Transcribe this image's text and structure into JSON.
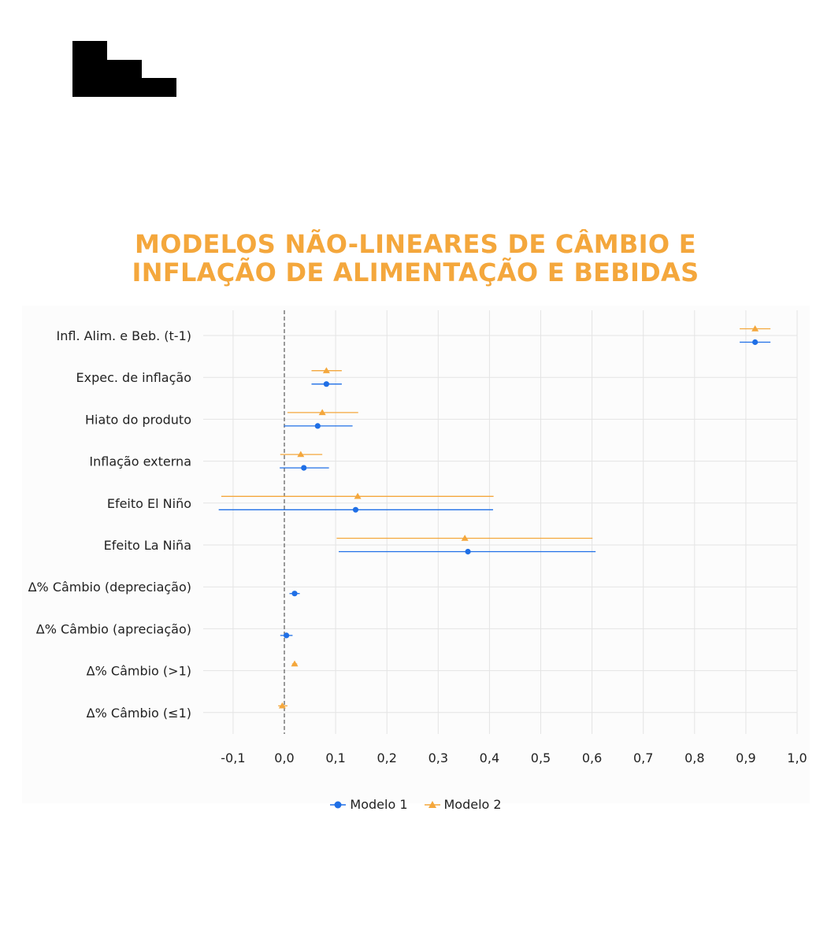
{
  "title_lines": [
    "MODELOS NÃO-LINEARES DE CÂMBIO E",
    "INFLAÇÃO DE ALIMENTAÇÃO E BEBIDAS"
  ],
  "colors": {
    "modelo1": "#1f6fe6",
    "modelo2": "#f4a73c",
    "title": "#f4a73c",
    "grid": "#e4e4e4",
    "zero_line": "#666666"
  },
  "legend": [
    {
      "label": "Modelo 1",
      "marker": "circle"
    },
    {
      "label": "Modelo 2",
      "marker": "triangle"
    }
  ],
  "chart_data": {
    "type": "scatter",
    "subtype": "coefficient-plot-with-confidence-intervals",
    "orientation": "horizontal",
    "categories": [
      "Infl. Alim. e Beb. (t-1)",
      "Expec. de inflação",
      "Hiato do produto",
      "Inflação externa",
      "Efeito El Niño",
      "Efeito La Niña",
      "Δ% Câmbio (depreciação)",
      "Δ% Câmbio (apreciação)",
      "Δ% Câmbio (>1)",
      "Δ% Câmbio (≤1)"
    ],
    "xlim": [
      -0.15,
      1.0
    ],
    "xticks": [
      -0.1,
      0.0,
      0.1,
      0.2,
      0.3,
      0.4,
      0.5,
      0.6,
      0.7,
      0.8,
      0.9,
      1.0
    ],
    "xtick_labels": [
      "-0,1",
      "0,0",
      "0,1",
      "0,2",
      "0,3",
      "0,4",
      "0,5",
      "0,6",
      "0,7",
      "0,8",
      "0,9",
      "1,0"
    ],
    "reference_line": 0.0,
    "grid": true,
    "legend_position": "bottom-center",
    "series": [
      {
        "name": "Modelo 1",
        "marker": "circle",
        "points": [
          {
            "category": "Infl. Alim. e Beb. (t-1)",
            "estimate": 0.918,
            "lower": 0.888,
            "upper": 0.948
          },
          {
            "category": "Expec. de inflação",
            "estimate": 0.082,
            "lower": 0.053,
            "upper": 0.112
          },
          {
            "category": "Hiato do produto",
            "estimate": 0.065,
            "lower": -0.001,
            "upper": 0.133
          },
          {
            "category": "Inflação externa",
            "estimate": 0.038,
            "lower": -0.009,
            "upper": 0.087
          },
          {
            "category": "Efeito El Niño",
            "estimate": 0.139,
            "lower": -0.128,
            "upper": 0.407
          },
          {
            "category": "Efeito La Niña",
            "estimate": 0.358,
            "lower": 0.106,
            "upper": 0.607
          },
          {
            "category": "Δ% Câmbio (depreciação)",
            "estimate": 0.02,
            "lower": 0.01,
            "upper": 0.03
          },
          {
            "category": "Δ% Câmbio (apreciação)",
            "estimate": 0.004,
            "lower": -0.008,
            "upper": 0.016
          }
        ]
      },
      {
        "name": "Modelo 2",
        "marker": "triangle",
        "points": [
          {
            "category": "Infl. Alim. e Beb. (t-1)",
            "estimate": 0.918,
            "lower": 0.888,
            "upper": 0.948
          },
          {
            "category": "Expec. de inflação",
            "estimate": 0.082,
            "lower": 0.053,
            "upper": 0.112
          },
          {
            "category": "Hiato do produto",
            "estimate": 0.074,
            "lower": 0.006,
            "upper": 0.144
          },
          {
            "category": "Inflação externa",
            "estimate": 0.032,
            "lower": -0.008,
            "upper": 0.074
          },
          {
            "category": "Efeito El Niño",
            "estimate": 0.143,
            "lower": -0.123,
            "upper": 0.408
          },
          {
            "category": "Efeito La Niña",
            "estimate": 0.352,
            "lower": 0.102,
            "upper": 0.601
          },
          {
            "category": "Δ% Câmbio (>1)",
            "estimate": 0.02,
            "lower": 0.015,
            "upper": 0.025
          },
          {
            "category": "Δ% Câmbio (≤1)",
            "estimate": -0.004,
            "lower": -0.012,
            "upper": 0.006
          }
        ]
      }
    ]
  }
}
